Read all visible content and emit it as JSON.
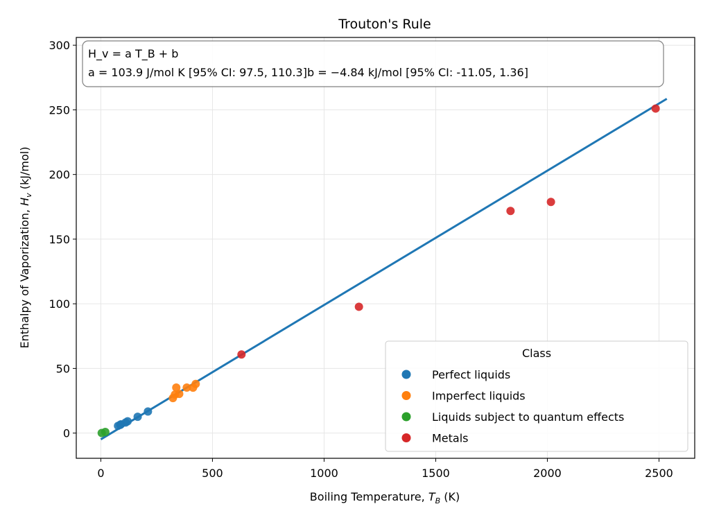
{
  "chart_data": {
    "type": "scatter",
    "title": "Trouton's Rule",
    "xlabel": {
      "prefix": "Boiling Temperature, ",
      "var": "T",
      "sub": "B",
      "suffix": " (K)"
    },
    "ylabel": {
      "prefix": "Enthalpy of Vaporization, ",
      "var": "H",
      "sub": "v",
      "suffix": " (kJ/mol)"
    },
    "xlim": [
      -110,
      2660
    ],
    "ylim": [
      -19.5,
      306
    ],
    "xticks": [
      0,
      500,
      1000,
      1500,
      2000,
      2500
    ],
    "yticks": [
      0,
      50,
      100,
      150,
      200,
      250,
      300
    ],
    "grid": true,
    "legend": {
      "title": "Class",
      "placement": "lower-right"
    },
    "annotation": {
      "line1": "H_v = a T_B + b",
      "line2": "a = 103.9 J/mol K [95% CI:  97.5, 110.3]b = −4.84 kJ/mol [95% CI: -11.05, 1.36]"
    },
    "fit_line": {
      "slope_kj_per_k": 0.1039,
      "intercept_kj": -4.84,
      "x_range": [
        0,
        2535
      ],
      "color": "#1f77b4"
    },
    "series": [
      {
        "name": "Perfect liquids",
        "color": "#1f77b4",
        "points": [
          [
            77,
            5.6
          ],
          [
            87,
            6.4
          ],
          [
            90,
            6.8
          ],
          [
            111,
            8.2
          ],
          [
            120,
            9.1
          ],
          [
            165,
            12.6
          ],
          [
            211,
            16.7
          ]
        ]
      },
      {
        "name": "Imperfect liquids",
        "color": "#ff7f0e",
        "points": [
          [
            323,
            27.1
          ],
          [
            332,
            29.8
          ],
          [
            338,
            35.2
          ],
          [
            351,
            30.3
          ],
          [
            385,
            35.2
          ],
          [
            413,
            35.1
          ],
          [
            425,
            38.0
          ]
        ]
      },
      {
        "name": "Liquids subject to quantum effects",
        "color": "#2ca02c",
        "points": [
          [
            4,
            0.1
          ],
          [
            20,
            0.9
          ]
        ]
      },
      {
        "name": "Metals",
        "color": "#d62728",
        "points": [
          [
            630,
            60.8
          ],
          [
            1156,
            97.7
          ],
          [
            1835,
            171.8
          ],
          [
            2016,
            178.8
          ],
          [
            2485,
            251.0
          ]
        ]
      }
    ]
  }
}
